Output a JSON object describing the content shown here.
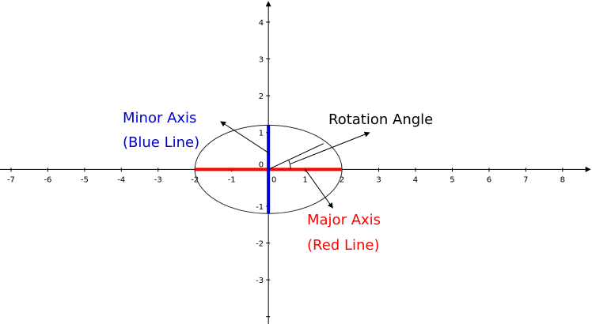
{
  "chart_data": {
    "type": "geometry-diagram",
    "x_axis": {
      "range": [
        -7.3,
        8.8
      ],
      "tick_values": [
        -7,
        -6,
        -5,
        -4,
        -3,
        -2,
        -1,
        0,
        1,
        2,
        3,
        4,
        5,
        6,
        7,
        8
      ],
      "tick_labels": [
        "-7",
        "-6",
        "-5",
        "-4",
        "-3",
        "-2",
        "-1",
        "0",
        "1",
        "2",
        "3",
        "4",
        "5",
        "6",
        "7",
        "8"
      ]
    },
    "y_axis": {
      "range": [
        -4.2,
        4.6
      ],
      "tick_values": [
        -4,
        -3,
        -2,
        -1,
        0,
        1,
        2,
        3,
        4
      ],
      "tick_labels": [
        "",
        "-3",
        "-2",
        "-1",
        "0",
        "1",
        "2",
        "3",
        "4"
      ]
    },
    "ellipse": {
      "center": [
        0,
        0
      ],
      "semi_major": 2,
      "semi_minor": 1.2,
      "rotation_deg": 0
    },
    "major_axis": {
      "from": [
        -2,
        0
      ],
      "to": [
        2,
        0
      ],
      "color": "#ff0000"
    },
    "minor_axis": {
      "from": [
        0,
        -1.2
      ],
      "to": [
        0,
        1.2
      ],
      "color": "#0000dd"
    },
    "rotation_ray": {
      "from": [
        0,
        0
      ],
      "to": [
        1.5,
        0.7
      ]
    },
    "arrows": [
      {
        "name": "minor-axis-pointer",
        "from": [
          0,
          0.45
        ],
        "to": [
          -1.3,
          1.3
        ]
      },
      {
        "name": "rotation-angle-pointer",
        "from": [
          0.6,
          0.15
        ],
        "to": [
          2.75,
          1.0
        ]
      },
      {
        "name": "major-axis-pointer",
        "from": [
          1.0,
          0
        ],
        "to": [
          1.75,
          -1.05
        ]
      }
    ],
    "annotations": [
      {
        "name": "minor-axis-title",
        "lines": [
          "Minor Axis",
          "(Blue Line)"
        ],
        "color": "#0000cc"
      },
      {
        "name": "rotation-angle-title",
        "lines": [
          "Rotation Angle"
        ],
        "color": "#000000"
      },
      {
        "name": "major-axis-title",
        "lines": [
          "Major Axis",
          "(Red Line)"
        ],
        "color": "#ff0000"
      }
    ]
  }
}
